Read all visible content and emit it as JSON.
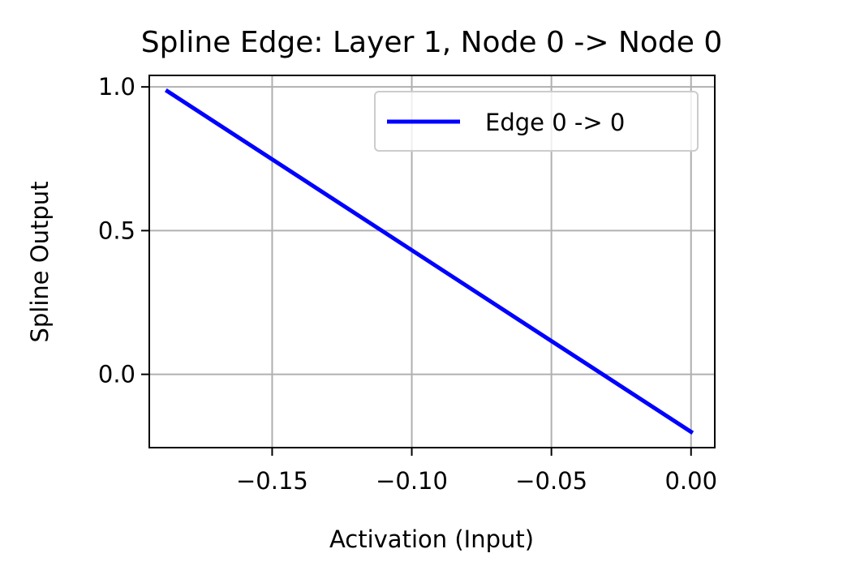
{
  "chart_data": {
    "type": "line",
    "title": "Spline Edge: Layer 1, Node 0 -> Node 0",
    "xlabel": "Activation (Input)",
    "ylabel": "Spline Output",
    "xlim": [
      -0.194,
      0.0085
    ],
    "ylim": [
      -0.255,
      1.04
    ],
    "x_ticks": [
      -0.15,
      -0.1,
      -0.05,
      0.0
    ],
    "x_tick_labels": [
      "−0.15",
      "−0.10",
      "−0.05",
      "0.00"
    ],
    "y_ticks": [
      0.0,
      0.5,
      1.0
    ],
    "y_tick_labels": [
      "0.0",
      "0.5",
      "1.0"
    ],
    "grid": true,
    "legend_position": "top-right",
    "series": [
      {
        "name": "Edge 0 -> 0",
        "color": "#0000ff",
        "x": [
          -0.1875,
          0.0
        ],
        "y": [
          0.985,
          -0.2
        ]
      }
    ]
  }
}
